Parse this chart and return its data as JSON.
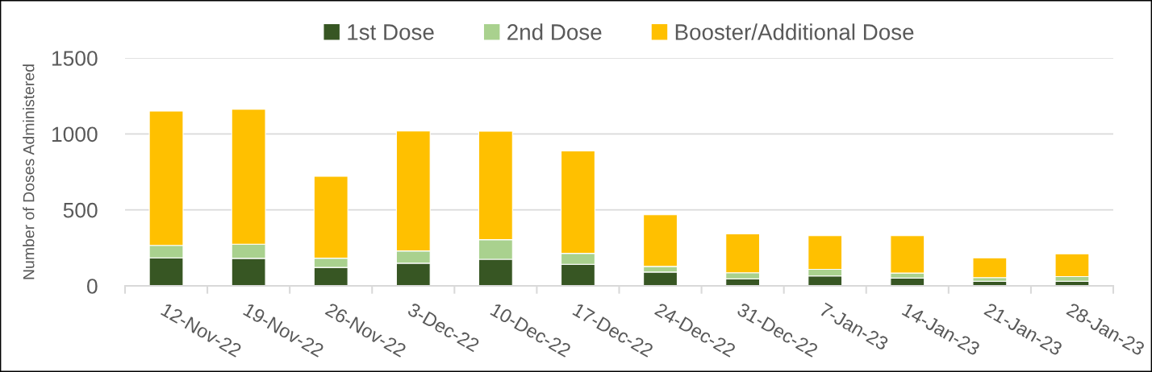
{
  "chart_data": {
    "type": "bar",
    "stacked": true,
    "ylabel": "Number of Doses Administered",
    "categories": [
      "12-Nov-22",
      "19-Nov-22",
      "26-Nov-22",
      "3-Dec-22",
      "10-Dec-22",
      "17-Dec-22",
      "24-Dec-22",
      "31-Dec-22",
      "7-Jan-23",
      "14-Jan-23",
      "21-Jan-23",
      "28-Jan-23"
    ],
    "series": [
      {
        "name": "1st Dose",
        "color": "#375623",
        "values": [
          184,
          181,
          121,
          149,
          175,
          142,
          91,
          46,
          65,
          51,
          30,
          30
        ]
      },
      {
        "name": "2nd Dose",
        "color": "#a9d18e",
        "values": [
          82,
          93,
          61,
          81,
          129,
          72,
          37,
          40,
          44,
          33,
          24,
          31
        ]
      },
      {
        "name": "Booster/Additional Dose",
        "color": "#ffc000",
        "values": [
          884,
          889,
          539,
          789,
          714,
          674,
          340,
          256,
          221,
          246,
          130,
          150
        ]
      }
    ],
    "ylim": [
      0,
      1500
    ],
    "yticks": [
      0,
      500,
      1000,
      1500
    ],
    "grid": "y",
    "legend": "top"
  }
}
